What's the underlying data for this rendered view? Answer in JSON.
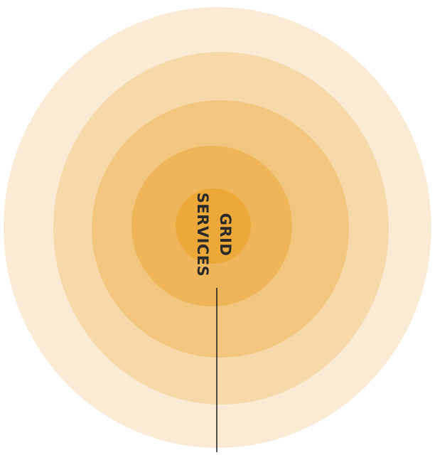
{
  "label": {
    "lines": [
      "GRID",
      "SERVICES"
    ]
  }
}
